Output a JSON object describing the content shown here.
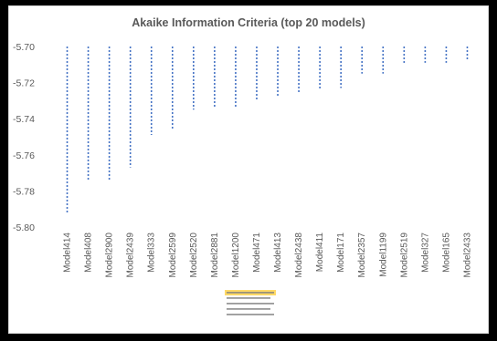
{
  "chart_data": {
    "type": "bar",
    "title": "Akaike Information Criteria (top 20 models)",
    "xlabel": "",
    "ylabel": "",
    "ylim": [
      -5.8,
      -5.7
    ],
    "ytick_labels": [
      "-5.70",
      "-5.72",
      "-5.74",
      "-5.76",
      "-5.78",
      "-5.80"
    ],
    "ytick_values": [
      -5.7,
      -5.72,
      -5.74,
      -5.76,
      -5.78,
      -5.8
    ],
    "grid": false,
    "bar_style": "dashed",
    "bar_color": "#4472c4",
    "categories": [
      "Model414",
      "Model408",
      "Model2900",
      "Model2439",
      "Model333",
      "Model2599",
      "Model2520",
      "Model2881",
      "Model1200",
      "Model471",
      "Model413",
      "Model2438",
      "Model411",
      "Model171",
      "Model2357",
      "Model1199",
      "Model2519",
      "Model327",
      "Model165",
      "Model2433"
    ],
    "values": [
      -5.792,
      -5.774,
      -5.774,
      -5.767,
      -5.749,
      -5.746,
      -5.735,
      -5.734,
      -5.734,
      -5.73,
      -5.728,
      -5.726,
      -5.724,
      -5.723,
      -5.715,
      -5.715,
      -5.71,
      -5.709,
      -5.709,
      -5.708
    ],
    "legend": {
      "position": "bottom",
      "highlight_color": "#ffd966"
    }
  }
}
